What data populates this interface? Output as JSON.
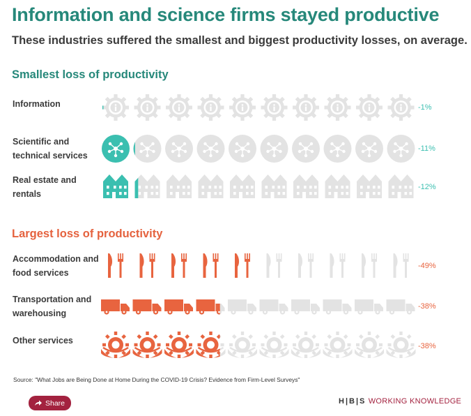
{
  "title": "Information and science firms stayed productive",
  "subtitle": "These industries suffered the smallest and biggest productivity losses, on average.",
  "sections": {
    "smallest": "Smallest loss of productivity",
    "largest": "Largest loss of productivity"
  },
  "colors": {
    "teal": "#3bbfb0",
    "orange": "#e8643f",
    "gray": "#e3e3e3",
    "title_teal": "#26887a",
    "brand_red": "#a3223f"
  },
  "chart_data": {
    "type": "pictograph",
    "title": "Information and science firms stayed productive",
    "subtitle": "These industries suffered the smallest and biggest productivity losses, on average.",
    "icons_per_row": 10,
    "percent_per_icon": 10,
    "groups": [
      {
        "name": "Smallest loss of productivity",
        "rows": [
          {
            "label": "Information",
            "value": -1,
            "value_label": "-1%",
            "icon": "info-gear-icon",
            "color": "#3bbfb0"
          },
          {
            "label": "Scientific and technical services",
            "value": -11,
            "value_label": "-11%",
            "icon": "molecule-icon",
            "color": "#3bbfb0"
          },
          {
            "label": "Real estate and rentals",
            "value": -12,
            "value_label": "-12%",
            "icon": "building-icon",
            "color": "#3bbfb0"
          }
        ]
      },
      {
        "name": "Largest loss of productivity",
        "rows": [
          {
            "label": "Accommodation and food services",
            "value": -49,
            "value_label": "-49%",
            "icon": "knife-fork-icon",
            "color": "#e8643f"
          },
          {
            "label": "Transportation and warehousing",
            "value": -38,
            "value_label": "-38%",
            "icon": "truck-icon",
            "color": "#e8643f"
          },
          {
            "label": "Other services",
            "value": -38,
            "value_label": "-38%",
            "icon": "hand-gear-icon",
            "color": "#e8643f"
          }
        ]
      }
    ]
  },
  "source": "Source: \"What Jobs are Being Done at Home During the COVID-19 Crisis? Evidence from Firm-Level Surveys\"",
  "share_label": "Share",
  "brand": {
    "hbs": "H|B|S",
    "name": "WORKING KNOWLEDGE"
  }
}
